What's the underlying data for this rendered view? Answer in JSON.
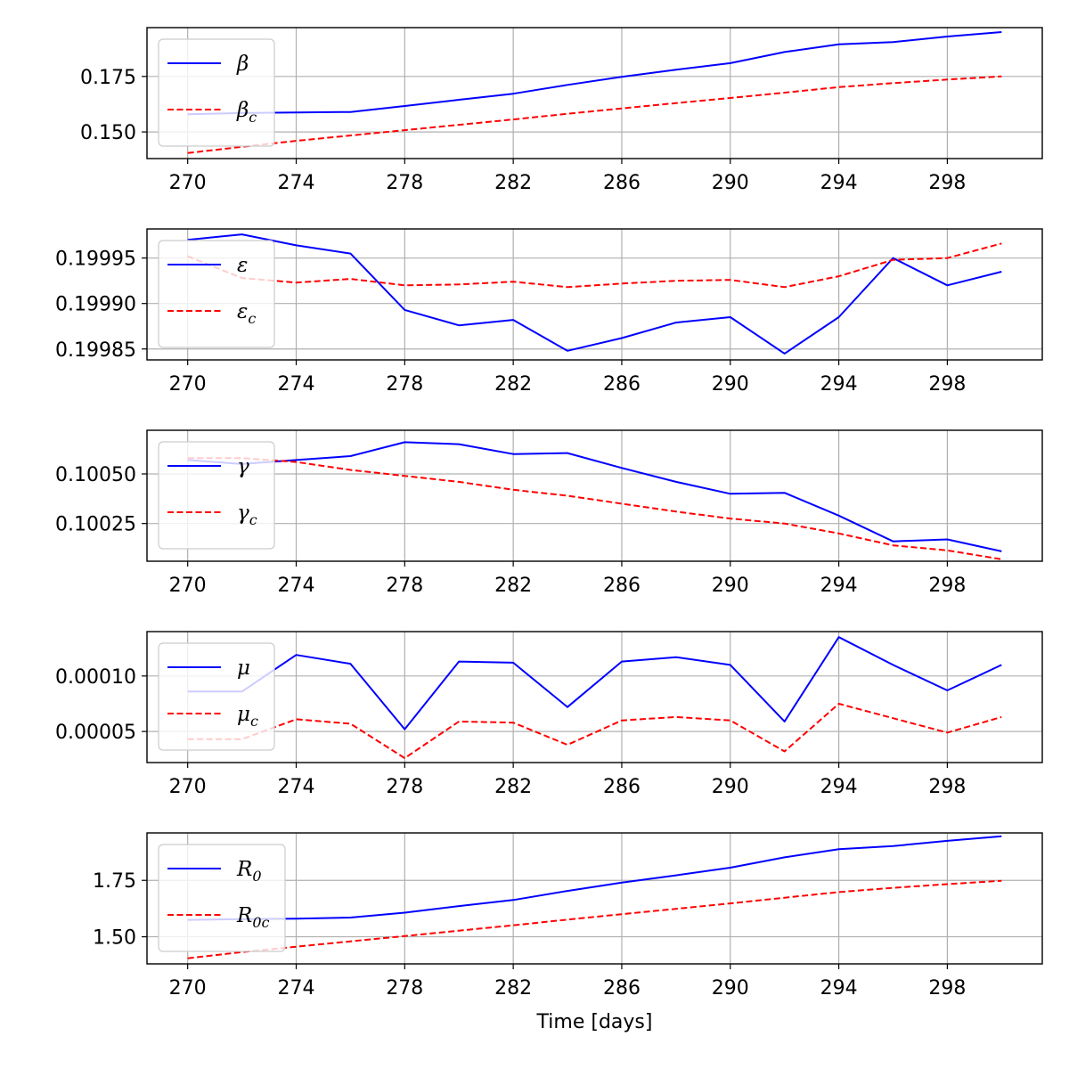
{
  "chart_data": [
    {
      "type": "line",
      "x": [
        270,
        272,
        274,
        276,
        278,
        280,
        282,
        284,
        286,
        288,
        290,
        292,
        294,
        296,
        298,
        300
      ],
      "xlim": [
        268.5,
        301.5
      ],
      "xticks": [
        "270",
        "274",
        "278",
        "282",
        "286",
        "290",
        "294",
        "298"
      ],
      "ylim": [
        0.138,
        0.197
      ],
      "yticks": [
        {
          "value": 0.175,
          "label": "0.175"
        },
        {
          "value": 0.15,
          "label": "0.150"
        }
      ],
      "grid": true,
      "legend": "upper left",
      "series": [
        {
          "name": "β",
          "base": "β",
          "sub": "",
          "color": "#0000ff",
          "style": "solid",
          "values": [
            0.158,
            0.1585,
            0.1588,
            0.159,
            0.1617,
            0.1645,
            0.1672,
            0.1712,
            0.1748,
            0.178,
            0.181,
            0.186,
            0.1895,
            0.1905,
            0.193,
            0.195
          ]
        },
        {
          "name": "β_c",
          "base": "β",
          "sub": "c",
          "color": "#ff0000",
          "style": "dashed",
          "values": [
            0.1405,
            0.1433,
            0.146,
            0.1484,
            0.1508,
            0.1532,
            0.1556,
            0.1582,
            0.1606,
            0.163,
            0.1653,
            0.1677,
            0.1702,
            0.172,
            0.1736,
            0.175
          ]
        }
      ],
      "xlabel": ""
    },
    {
      "type": "line",
      "x": [
        270,
        272,
        274,
        276,
        278,
        280,
        282,
        284,
        286,
        288,
        290,
        292,
        294,
        296,
        298,
        300
      ],
      "xlim": [
        268.5,
        301.5
      ],
      "xticks": [
        "270",
        "274",
        "278",
        "282",
        "286",
        "290",
        "294",
        "298"
      ],
      "ylim": [
        0.199838,
        0.199982
      ],
      "yticks": [
        {
          "value": 0.19995,
          "label": "0.19995"
        },
        {
          "value": 0.1999,
          "label": "0.19990"
        },
        {
          "value": 0.19985,
          "label": "0.19985"
        }
      ],
      "grid": true,
      "legend": "upper left",
      "series": [
        {
          "name": "ε",
          "base": "ε",
          "sub": "",
          "color": "#0000ff",
          "style": "solid",
          "values": [
            0.19997,
            0.199976,
            0.199964,
            0.199955,
            0.199893,
            0.199876,
            0.199882,
            0.199848,
            0.199862,
            0.199879,
            0.199885,
            0.199845,
            0.199885,
            0.19995,
            0.19992,
            0.199935
          ]
        },
        {
          "name": "ε_c",
          "base": "ε",
          "sub": "c",
          "color": "#ff0000",
          "style": "dashed",
          "values": [
            0.199952,
            0.199928,
            0.199923,
            0.199927,
            0.19992,
            0.199921,
            0.199924,
            0.199918,
            0.199922,
            0.199925,
            0.199926,
            0.199918,
            0.19993,
            0.199948,
            0.19995,
            0.199966
          ]
        }
      ],
      "xlabel": ""
    },
    {
      "type": "line",
      "x": [
        270,
        272,
        274,
        276,
        278,
        280,
        282,
        284,
        286,
        288,
        290,
        292,
        294,
        296,
        298,
        300
      ],
      "xlim": [
        268.5,
        301.5
      ],
      "xticks": [
        "270",
        "274",
        "278",
        "282",
        "286",
        "290",
        "294",
        "298"
      ],
      "ylim": [
        0.10006,
        0.10072
      ],
      "yticks": [
        {
          "value": 0.1005,
          "label": "0.10050"
        },
        {
          "value": 0.10025,
          "label": "0.10025"
        }
      ],
      "grid": true,
      "legend": "upper left",
      "series": [
        {
          "name": "γ",
          "base": "γ",
          "sub": "",
          "color": "#0000ff",
          "style": "solid",
          "values": [
            0.10057,
            0.10055,
            0.10057,
            0.10059,
            0.10066,
            0.10065,
            0.1006,
            0.100605,
            0.10053,
            0.10046,
            0.1004,
            0.100405,
            0.10029,
            0.10016,
            0.10017,
            0.10011
          ]
        },
        {
          "name": "γ_c",
          "base": "γ",
          "sub": "c",
          "color": "#ff0000",
          "style": "dashed",
          "values": [
            0.10058,
            0.10058,
            0.10056,
            0.10052,
            0.10049,
            0.10046,
            0.10042,
            0.10039,
            0.10035,
            0.10031,
            0.100275,
            0.10025,
            0.1002,
            0.10014,
            0.100115,
            0.10007
          ]
        }
      ],
      "xlabel": ""
    },
    {
      "type": "line",
      "x": [
        270,
        272,
        274,
        276,
        278,
        280,
        282,
        284,
        286,
        288,
        290,
        292,
        294,
        296,
        298,
        300
      ],
      "xlim": [
        268.5,
        301.5
      ],
      "xticks": [
        "270",
        "274",
        "278",
        "282",
        "286",
        "290",
        "294",
        "298"
      ],
      "ylim": [
        2.2e-05,
        0.00014
      ],
      "yticks": [
        {
          "value": 0.0001,
          "label": "0.00010"
        },
        {
          "value": 5e-05,
          "label": "0.00005"
        }
      ],
      "grid": true,
      "legend": "upper left",
      "series": [
        {
          "name": "μ",
          "base": "μ",
          "sub": "",
          "color": "#0000ff",
          "style": "solid",
          "values": [
            8.6e-05,
            8.6e-05,
            0.000119,
            0.000111,
            5.2e-05,
            0.000113,
            0.000112,
            7.2e-05,
            0.000113,
            0.000117,
            0.00011,
            5.9e-05,
            0.000135,
            0.00011,
            8.7e-05,
            0.00011
          ]
        },
        {
          "name": "μ_c",
          "base": "μ",
          "sub": "c",
          "color": "#ff0000",
          "style": "dashed",
          "values": [
            4.3e-05,
            4.3e-05,
            6.1e-05,
            5.7e-05,
            2.6e-05,
            5.9e-05,
            5.8e-05,
            3.8e-05,
            6e-05,
            6.3e-05,
            6e-05,
            3.2e-05,
            7.5e-05,
            6.2e-05,
            4.9e-05,
            6.3e-05
          ]
        }
      ],
      "xlabel": ""
    },
    {
      "type": "line",
      "x": [
        270,
        272,
        274,
        276,
        278,
        280,
        282,
        284,
        286,
        288,
        290,
        292,
        294,
        296,
        298,
        300
      ],
      "xlim": [
        268.5,
        301.5
      ],
      "xticks": [
        "270",
        "274",
        "278",
        "282",
        "286",
        "290",
        "294",
        "298"
      ],
      "ylim": [
        1.38,
        1.96
      ],
      "yticks": [
        {
          "value": 1.75,
          "label": "1.75"
        },
        {
          "value": 1.5,
          "label": "1.50"
        }
      ],
      "grid": true,
      "legend": "upper left",
      "series": [
        {
          "name": "R_0",
          "base": "R",
          "sub": "0",
          "color": "#0000ff",
          "style": "solid",
          "values": [
            1.575,
            1.578,
            1.58,
            1.585,
            1.607,
            1.636,
            1.663,
            1.703,
            1.74,
            1.772,
            1.806,
            1.852,
            1.888,
            1.902,
            1.925,
            1.945
          ]
        },
        {
          "name": "R_0c",
          "base": "R",
          "sub": "0c",
          "color": "#ff0000",
          "style": "dashed",
          "values": [
            1.405,
            1.432,
            1.456,
            1.48,
            1.503,
            1.527,
            1.551,
            1.576,
            1.6,
            1.624,
            1.648,
            1.673,
            1.698,
            1.717,
            1.733,
            1.748
          ]
        }
      ],
      "xlabel": "Time [days]"
    }
  ]
}
